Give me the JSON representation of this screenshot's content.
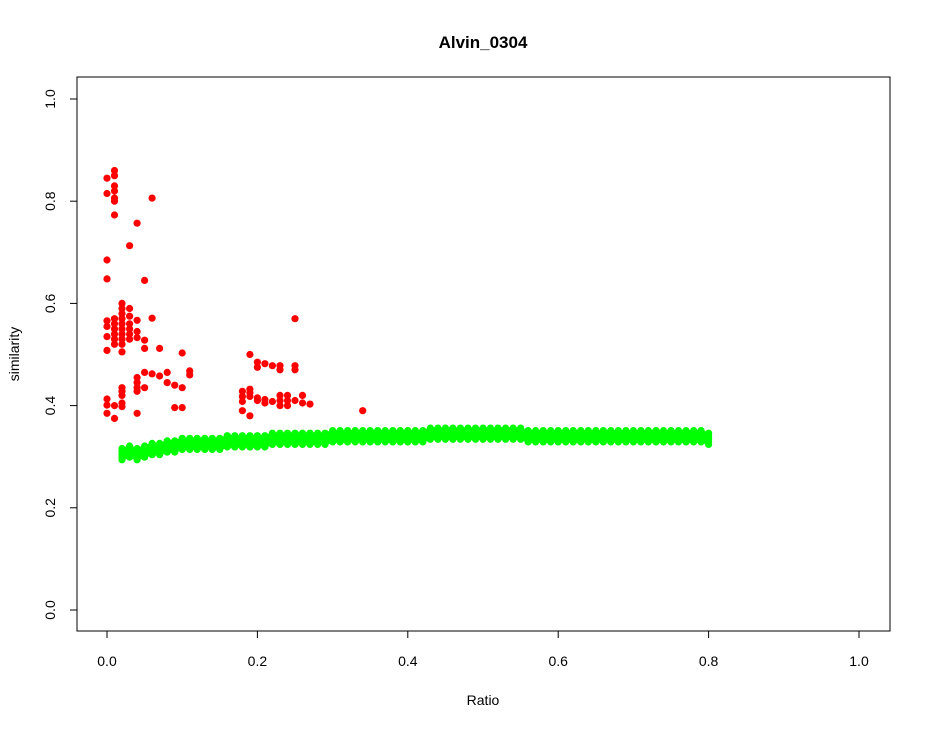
{
  "chart_data": {
    "type": "scatter",
    "title": "Alvin_0304",
    "xlabel": "Ratio",
    "ylabel": "similarity",
    "xlim": [
      0.0,
      1.0
    ],
    "ylim": [
      0.0,
      1.0
    ],
    "x_ticks": [
      "0.0",
      "0.2",
      "0.4",
      "0.6",
      "0.8",
      "1.0"
    ],
    "y_ticks": [
      "0.0",
      "0.2",
      "0.4",
      "0.6",
      "0.8",
      "1.0"
    ],
    "grid": false,
    "legend": "none",
    "series": [
      {
        "color": "#ff0000",
        "points": [
          [
            0.0,
            0.845
          ],
          [
            0.0,
            0.815
          ],
          [
            0.0,
            0.685
          ],
          [
            0.0,
            0.648
          ],
          [
            0.0,
            0.566
          ],
          [
            0.0,
            0.555
          ],
          [
            0.0,
            0.535
          ],
          [
            0.0,
            0.508
          ],
          [
            0.0,
            0.413
          ],
          [
            0.0,
            0.401
          ],
          [
            0.0,
            0.385
          ],
          [
            0.01,
            0.86
          ],
          [
            0.01,
            0.85
          ],
          [
            0.01,
            0.83
          ],
          [
            0.01,
            0.82
          ],
          [
            0.01,
            0.806
          ],
          [
            0.01,
            0.8
          ],
          [
            0.01,
            0.773
          ],
          [
            0.01,
            0.57
          ],
          [
            0.01,
            0.56
          ],
          [
            0.01,
            0.55
          ],
          [
            0.01,
            0.54
          ],
          [
            0.01,
            0.53
          ],
          [
            0.01,
            0.52
          ],
          [
            0.01,
            0.4
          ],
          [
            0.01,
            0.375
          ],
          [
            0.02,
            0.6
          ],
          [
            0.02,
            0.59
          ],
          [
            0.02,
            0.58
          ],
          [
            0.02,
            0.57
          ],
          [
            0.02,
            0.56
          ],
          [
            0.02,
            0.55
          ],
          [
            0.02,
            0.54
          ],
          [
            0.02,
            0.53
          ],
          [
            0.02,
            0.52
          ],
          [
            0.02,
            0.505
          ],
          [
            0.02,
            0.435
          ],
          [
            0.02,
            0.428
          ],
          [
            0.02,
            0.42
          ],
          [
            0.02,
            0.405
          ],
          [
            0.02,
            0.398
          ],
          [
            0.03,
            0.713
          ],
          [
            0.03,
            0.59
          ],
          [
            0.03,
            0.575
          ],
          [
            0.03,
            0.56
          ],
          [
            0.03,
            0.55
          ],
          [
            0.03,
            0.54
          ],
          [
            0.03,
            0.53
          ],
          [
            0.04,
            0.757
          ],
          [
            0.04,
            0.567
          ],
          [
            0.04,
            0.545
          ],
          [
            0.04,
            0.533
          ],
          [
            0.04,
            0.455
          ],
          [
            0.04,
            0.445
          ],
          [
            0.04,
            0.435
          ],
          [
            0.04,
            0.428
          ],
          [
            0.04,
            0.385
          ],
          [
            0.05,
            0.645
          ],
          [
            0.05,
            0.528
          ],
          [
            0.05,
            0.512
          ],
          [
            0.05,
            0.465
          ],
          [
            0.05,
            0.435
          ],
          [
            0.06,
            0.806
          ],
          [
            0.06,
            0.571
          ],
          [
            0.06,
            0.462
          ],
          [
            0.07,
            0.512
          ],
          [
            0.07,
            0.458
          ],
          [
            0.08,
            0.465
          ],
          [
            0.08,
            0.445
          ],
          [
            0.09,
            0.44
          ],
          [
            0.09,
            0.396
          ],
          [
            0.1,
            0.503
          ],
          [
            0.1,
            0.435
          ],
          [
            0.1,
            0.396
          ],
          [
            0.11,
            0.468
          ],
          [
            0.11,
            0.46
          ],
          [
            0.18,
            0.428
          ],
          [
            0.18,
            0.418
          ],
          [
            0.18,
            0.408
          ],
          [
            0.18,
            0.39
          ],
          [
            0.19,
            0.5
          ],
          [
            0.19,
            0.432
          ],
          [
            0.19,
            0.425
          ],
          [
            0.19,
            0.418
          ],
          [
            0.19,
            0.38
          ],
          [
            0.2,
            0.485
          ],
          [
            0.2,
            0.475
          ],
          [
            0.2,
            0.415
          ],
          [
            0.2,
            0.41
          ],
          [
            0.21,
            0.482
          ],
          [
            0.21,
            0.412
          ],
          [
            0.21,
            0.405
          ],
          [
            0.22,
            0.478
          ],
          [
            0.22,
            0.408
          ],
          [
            0.23,
            0.478
          ],
          [
            0.23,
            0.47
          ],
          [
            0.23,
            0.42
          ],
          [
            0.23,
            0.41
          ],
          [
            0.23,
            0.4
          ],
          [
            0.24,
            0.42
          ],
          [
            0.24,
            0.41
          ],
          [
            0.24,
            0.4
          ],
          [
            0.25,
            0.57
          ],
          [
            0.25,
            0.478
          ],
          [
            0.25,
            0.47
          ],
          [
            0.25,
            0.41
          ],
          [
            0.26,
            0.42
          ],
          [
            0.26,
            0.405
          ],
          [
            0.27,
            0.403
          ],
          [
            0.34,
            0.39
          ]
        ]
      },
      {
        "color": "#00ff00",
        "band": [
          [
            0.02,
            0.305
          ],
          [
            0.03,
            0.31
          ],
          [
            0.04,
            0.305
          ],
          [
            0.05,
            0.31
          ],
          [
            0.06,
            0.315
          ],
          [
            0.07,
            0.315
          ],
          [
            0.08,
            0.32
          ],
          [
            0.09,
            0.32
          ],
          [
            0.1,
            0.325
          ],
          [
            0.11,
            0.325
          ],
          [
            0.12,
            0.325
          ],
          [
            0.13,
            0.325
          ],
          [
            0.14,
            0.325
          ],
          [
            0.15,
            0.325
          ],
          [
            0.16,
            0.33
          ],
          [
            0.17,
            0.33
          ],
          [
            0.18,
            0.33
          ],
          [
            0.19,
            0.33
          ],
          [
            0.2,
            0.33
          ],
          [
            0.21,
            0.33
          ],
          [
            0.22,
            0.335
          ],
          [
            0.23,
            0.335
          ],
          [
            0.24,
            0.335
          ],
          [
            0.25,
            0.335
          ],
          [
            0.26,
            0.335
          ],
          [
            0.27,
            0.335
          ],
          [
            0.28,
            0.335
          ],
          [
            0.29,
            0.335
          ],
          [
            0.3,
            0.34
          ],
          [
            0.31,
            0.34
          ],
          [
            0.32,
            0.34
          ],
          [
            0.33,
            0.34
          ],
          [
            0.34,
            0.34
          ],
          [
            0.35,
            0.34
          ],
          [
            0.36,
            0.34
          ],
          [
            0.37,
            0.34
          ],
          [
            0.38,
            0.34
          ],
          [
            0.39,
            0.34
          ],
          [
            0.4,
            0.34
          ],
          [
            0.41,
            0.34
          ],
          [
            0.42,
            0.34
          ],
          [
            0.43,
            0.345
          ],
          [
            0.44,
            0.345
          ],
          [
            0.45,
            0.345
          ],
          [
            0.46,
            0.345
          ],
          [
            0.47,
            0.345
          ],
          [
            0.48,
            0.345
          ],
          [
            0.49,
            0.345
          ],
          [
            0.5,
            0.345
          ],
          [
            0.51,
            0.345
          ],
          [
            0.52,
            0.345
          ],
          [
            0.53,
            0.345
          ],
          [
            0.54,
            0.345
          ],
          [
            0.55,
            0.345
          ],
          [
            0.56,
            0.34
          ],
          [
            0.57,
            0.34
          ],
          [
            0.58,
            0.34
          ],
          [
            0.59,
            0.34
          ],
          [
            0.6,
            0.34
          ],
          [
            0.61,
            0.34
          ],
          [
            0.62,
            0.34
          ],
          [
            0.63,
            0.34
          ],
          [
            0.64,
            0.34
          ],
          [
            0.65,
            0.34
          ],
          [
            0.66,
            0.34
          ],
          [
            0.67,
            0.34
          ],
          [
            0.68,
            0.34
          ],
          [
            0.69,
            0.34
          ],
          [
            0.7,
            0.34
          ],
          [
            0.71,
            0.34
          ],
          [
            0.72,
            0.34
          ],
          [
            0.73,
            0.34
          ],
          [
            0.74,
            0.34
          ],
          [
            0.75,
            0.34
          ],
          [
            0.76,
            0.34
          ],
          [
            0.77,
            0.34
          ],
          [
            0.78,
            0.34
          ],
          [
            0.79,
            0.34
          ],
          [
            0.8,
            0.335
          ]
        ],
        "band_spread": 0.022
      }
    ]
  }
}
